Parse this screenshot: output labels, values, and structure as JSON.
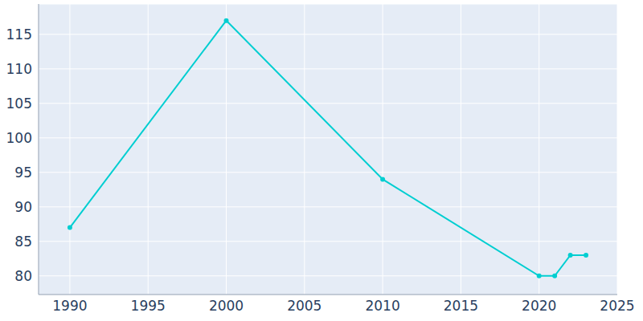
{
  "chart_data": {
    "type": "line",
    "x": [
      1990,
      2000,
      2010,
      2020,
      2021,
      2022,
      2023
    ],
    "values": [
      87,
      117,
      94,
      80,
      80,
      83,
      83
    ],
    "color": "#00ced1",
    "xlim": [
      1988,
      2025
    ],
    "xticks": [
      1990,
      1995,
      2000,
      2005,
      2010,
      2015,
      2020,
      2025
    ],
    "ylim": [
      77.3,
      119.4
    ],
    "yticks": [
      80,
      85,
      90,
      95,
      100,
      105,
      110,
      115
    ],
    "grid": true,
    "marker": "circle"
  }
}
